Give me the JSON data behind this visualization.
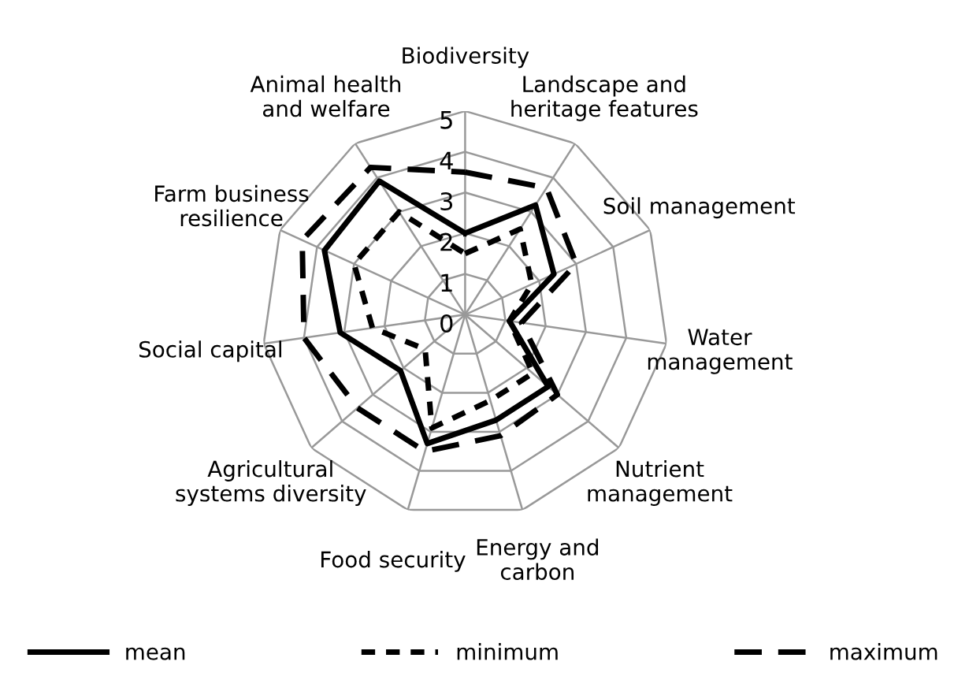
{
  "chart_data": {
    "type": "radar",
    "categories": [
      "Biodiversity",
      "Landscape and\nheritage features",
      "Soil management",
      "Water\nmanagement",
      "Nutrient\nmanagement",
      "Energy and\ncarbon",
      "Food security",
      "Agricultural\nsystems diversity",
      "Social capital",
      "Farm business\nresilience",
      "Animal health\nand welfare"
    ],
    "series": [
      {
        "name": "mean",
        "color": "#000000",
        "line_style": "solid",
        "values": [
          2.0,
          3.2,
          2.4,
          1.1,
          2.7,
          2.7,
          3.3,
          2.1,
          3.1,
          3.8,
          3.9
        ]
      },
      {
        "name": "minimum",
        "color": "#000000",
        "line_style": "dotted",
        "values": [
          1.5,
          2.5,
          1.8,
          1.1,
          2.2,
          2.2,
          2.9,
          1.3,
          2.3,
          3.0,
          3.0
        ]
      },
      {
        "name": "maximum",
        "color": "#000000",
        "line_style": "dashed",
        "values": [
          3.5,
          3.7,
          3.0,
          1.4,
          3.0,
          3.1,
          3.5,
          3.5,
          4.0,
          4.4,
          4.3
        ]
      }
    ],
    "ylim": [
      0,
      5
    ],
    "yticks": [
      0,
      1,
      2,
      3,
      4,
      5
    ],
    "grid": true,
    "legend": "bottom",
    "marker": "none"
  }
}
